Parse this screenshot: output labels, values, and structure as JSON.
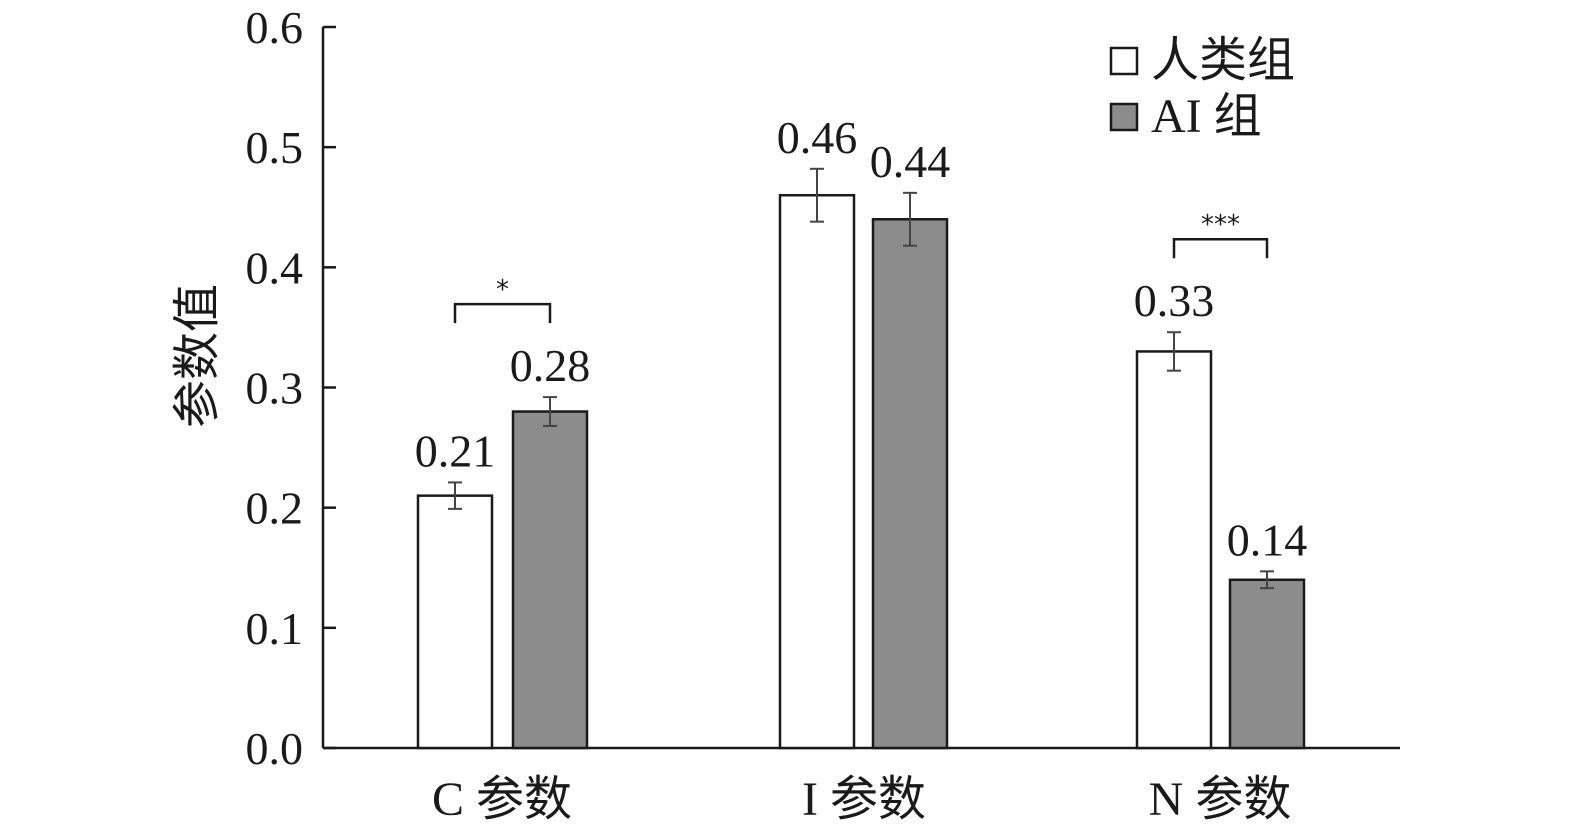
{
  "chart_data": {
    "type": "bar",
    "categories": [
      "C 参数",
      "I 参数",
      "N 参数"
    ],
    "series": [
      {
        "name": "人类组",
        "values": [
          0.21,
          0.46,
          0.33
        ],
        "errors": [
          0.011,
          0.022,
          0.016
        ],
        "color": "#ffffff"
      },
      {
        "name": "AI 组",
        "values": [
          0.28,
          0.44,
          0.14
        ],
        "errors": [
          0.012,
          0.022,
          0.007
        ],
        "color": "#8c8c8c"
      }
    ],
    "value_labels": [
      [
        "0.21",
        "0.46",
        "0.33"
      ],
      [
        "0.28",
        "0.44",
        "0.14"
      ]
    ],
    "ylabel": "参数值",
    "ylim": [
      0,
      0.6
    ],
    "yticks": [
      "0.0",
      "0.1",
      "0.2",
      "0.3",
      "0.4",
      "0.5",
      "0.6"
    ],
    "significance": [
      {
        "category_index": 0,
        "label": "*"
      },
      {
        "category_index": 2,
        "label": "***"
      }
    ],
    "legend_position": "top-right",
    "grid": false
  }
}
